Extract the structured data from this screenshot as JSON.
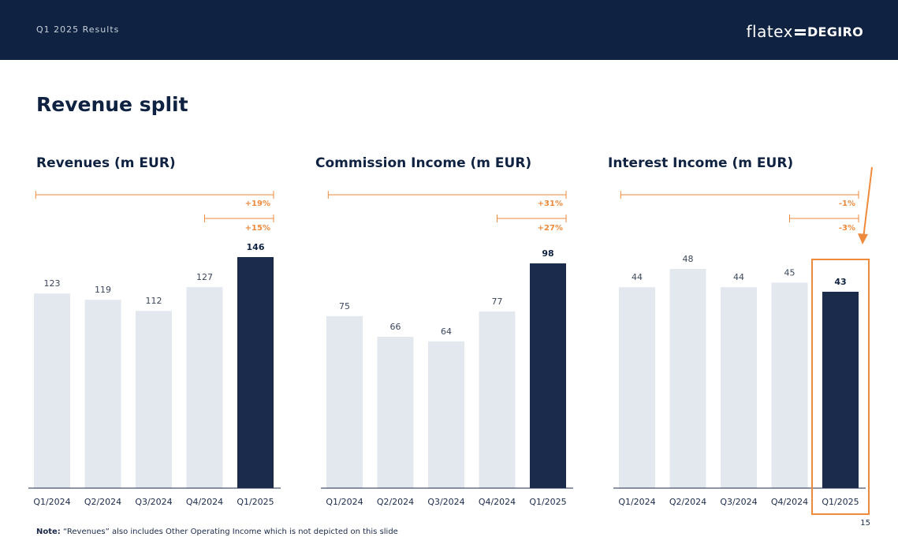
{
  "header": {
    "subtitle": "Q1 2025 Results",
    "logo_left": "flatex",
    "logo_right": "DEGIRO"
  },
  "page": {
    "title": "Revenue split",
    "note_label": "Note:",
    "note_text": "“Revenues” also includes Other Operating Income which is not depicted on this slide",
    "number": "15"
  },
  "colors": {
    "header_bg": "#0f2241",
    "bar_light": "#e3e8ef",
    "bar_dark": "#1a2b4c",
    "accent": "#ee8a3c"
  },
  "chart_data": [
    {
      "type": "bar",
      "title": "Revenues (m EUR)",
      "categories": [
        "Q1/2024",
        "Q2/2024",
        "Q3/2024",
        "Q4/2024",
        "Q1/2025"
      ],
      "values": [
        123,
        119,
        112,
        127,
        146
      ],
      "value_labels": [
        "123",
        "119",
        "112",
        "127",
        "146"
      ],
      "highlight_index": 4,
      "ylim": [
        0,
        146
      ],
      "growth": [
        {
          "from_index": 0,
          "to_index": 4,
          "label": "+19%"
        },
        {
          "from_index": 3,
          "to_index": 4,
          "label": "+15%"
        }
      ]
    },
    {
      "type": "bar",
      "title": "Commission Income (m EUR)",
      "categories": [
        "Q1/2024",
        "Q2/2024",
        "Q3/2024",
        "Q4/2024",
        "Q1/2025"
      ],
      "values": [
        75,
        66,
        64,
        77,
        98
      ],
      "value_labels": [
        "75",
        "66",
        "64",
        "77",
        "98"
      ],
      "highlight_index": 4,
      "ylim": [
        0,
        98
      ],
      "growth": [
        {
          "from_index": 0,
          "to_index": 4,
          "label": "+31%"
        },
        {
          "from_index": 3,
          "to_index": 4,
          "label": "+27%"
        }
      ]
    },
    {
      "type": "bar",
      "title": "Interest Income (m EUR)",
      "categories": [
        "Q1/2024",
        "Q2/2024",
        "Q3/2024",
        "Q4/2024",
        "Q1/2025"
      ],
      "values": [
        44,
        48,
        44,
        45,
        43
      ],
      "value_labels": [
        "44",
        "48",
        "44",
        "45",
        "43"
      ],
      "highlight_index": 4,
      "ylim": [
        0,
        48
      ],
      "growth": [
        {
          "from_index": 0,
          "to_index": 4,
          "label": "-1%"
        },
        {
          "from_index": 3,
          "to_index": 4,
          "label": "-3%"
        }
      ]
    }
  ]
}
